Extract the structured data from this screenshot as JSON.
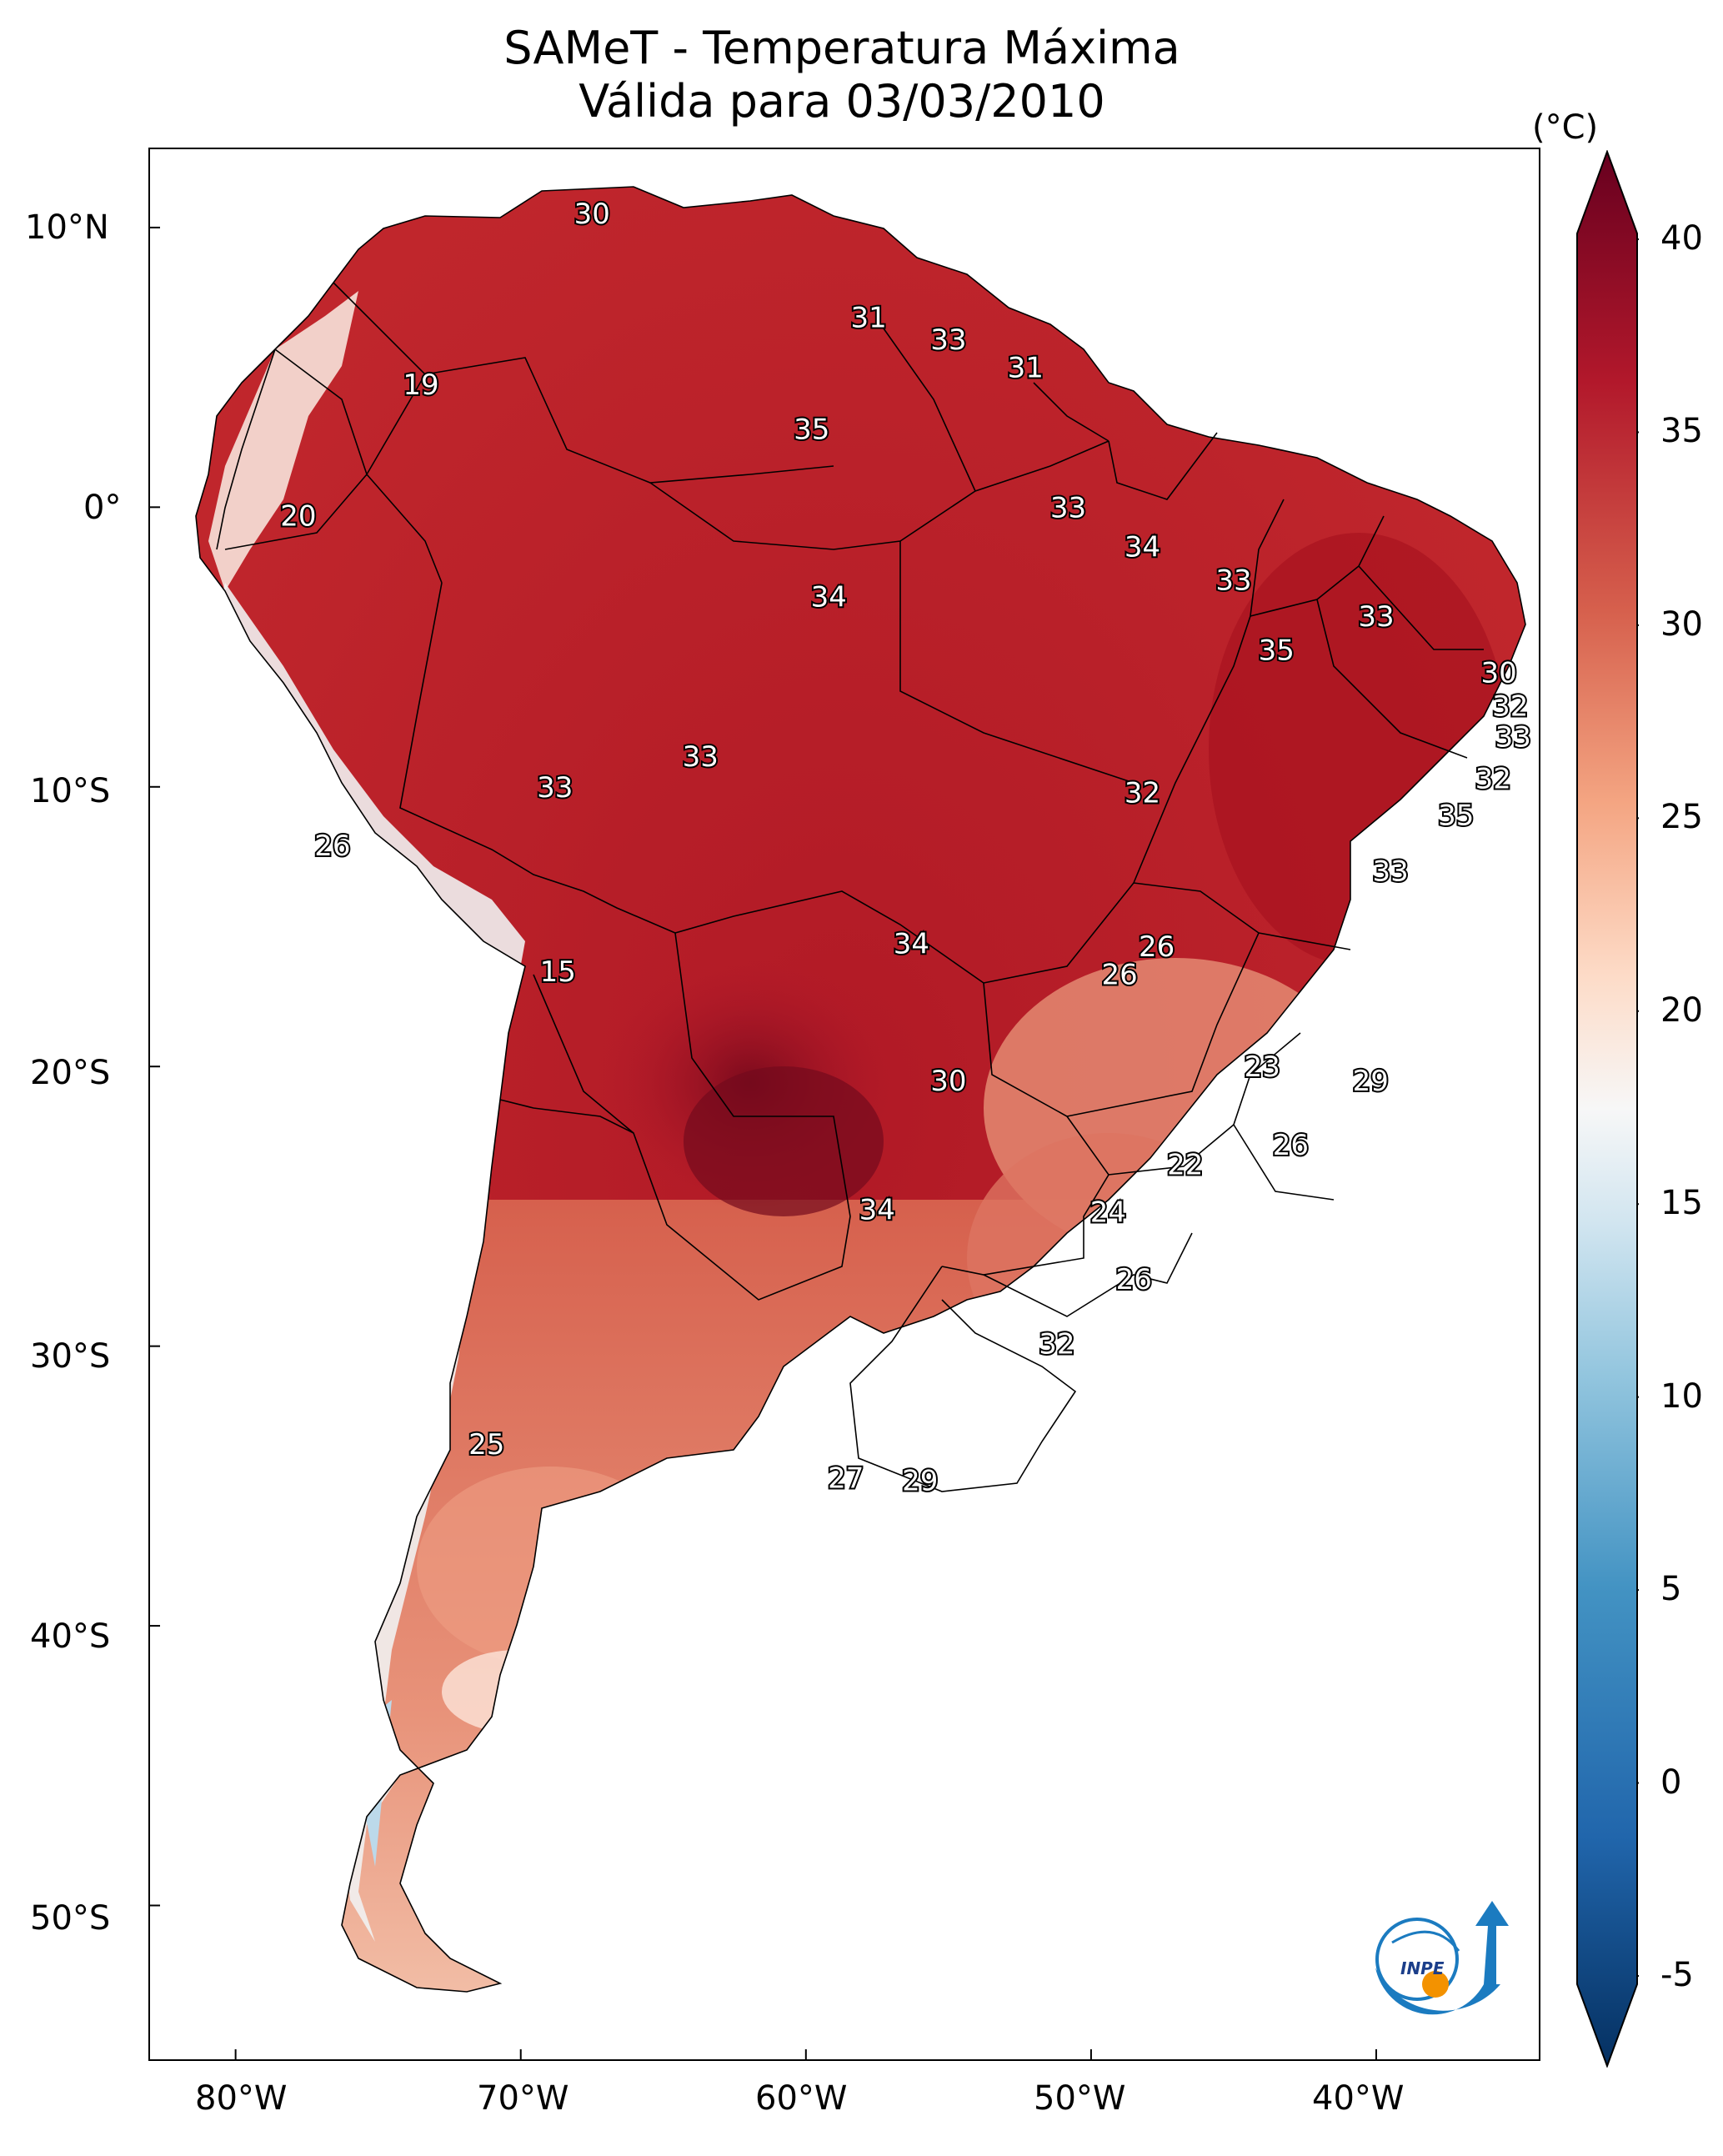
{
  "title_line1": "SAMeT - Temperatura Máxima",
  "title_line2": "Válida para 03/03/2010",
  "colorbar": {
    "unit": "(°C)",
    "ticks": [
      "40",
      "35",
      "30",
      "25",
      "20",
      "15",
      "10",
      "5",
      "0",
      "-5"
    ],
    "range": [
      -5,
      40
    ],
    "colormap": "RdBu_r",
    "colors": [
      "#053061",
      "#2166ac",
      "#4393c3",
      "#92c5de",
      "#d1e5f0",
      "#f7f7f7",
      "#fddbc7",
      "#f4a582",
      "#d6604d",
      "#b2182b",
      "#67001f"
    ]
  },
  "axes": {
    "lon_labels": [
      "80°W",
      "70°W",
      "60°W",
      "50°W",
      "40°W"
    ],
    "lat_labels": [
      "10°N",
      "0°",
      "10°S",
      "20°S",
      "30°S",
      "40°S",
      "50°S"
    ]
  },
  "isotherm_labels": [
    {
      "text": "30",
      "lon": -67.5,
      "lat": 10.5
    },
    {
      "text": "31",
      "lon": -57.8,
      "lat": 6.8
    },
    {
      "text": "33",
      "lon": -55.0,
      "lat": 6.0
    },
    {
      "text": "31",
      "lon": -52.3,
      "lat": 5.0
    },
    {
      "text": "19",
      "lon": -73.5,
      "lat": 4.4
    },
    {
      "text": "35",
      "lon": -59.8,
      "lat": 2.8
    },
    {
      "text": "20",
      "lon": -77.8,
      "lat": -0.3
    },
    {
      "text": "33",
      "lon": -50.8,
      "lat": 0.0
    },
    {
      "text": "34",
      "lon": -48.2,
      "lat": -1.4
    },
    {
      "text": "33",
      "lon": -45.0,
      "lat": -2.6
    },
    {
      "text": "34",
      "lon": -59.2,
      "lat": -3.2
    },
    {
      "text": "33",
      "lon": -40.0,
      "lat": -3.9
    },
    {
      "text": "35",
      "lon": -43.5,
      "lat": -5.1
    },
    {
      "text": "30",
      "lon": -35.7,
      "lat": -5.9
    },
    {
      "text": "32",
      "lon": -35.3,
      "lat": -7.1
    },
    {
      "text": "33",
      "lon": -35.2,
      "lat": -8.2
    },
    {
      "text": "33",
      "lon": -63.7,
      "lat": -8.9
    },
    {
      "text": "33",
      "lon": -68.8,
      "lat": -10.0
    },
    {
      "text": "32",
      "lon": -48.2,
      "lat": -10.2
    },
    {
      "text": "32",
      "lon": -35.9,
      "lat": -9.7
    },
    {
      "text": "35",
      "lon": -37.2,
      "lat": -11.0
    },
    {
      "text": "26",
      "lon": -76.6,
      "lat": -12.1
    },
    {
      "text": "33",
      "lon": -39.5,
      "lat": -13.0
    },
    {
      "text": "34",
      "lon": -56.3,
      "lat": -15.6
    },
    {
      "text": "26",
      "lon": -47.7,
      "lat": -15.7
    },
    {
      "text": "26",
      "lon": -49.0,
      "lat": -16.7
    },
    {
      "text": "15",
      "lon": -68.7,
      "lat": -16.6
    },
    {
      "text": "23",
      "lon": -44.0,
      "lat": -20.0
    },
    {
      "text": "29",
      "lon": -40.2,
      "lat": -20.5
    },
    {
      "text": "30",
      "lon": -55.0,
      "lat": -20.5
    },
    {
      "text": "26",
      "lon": -43.0,
      "lat": -22.8
    },
    {
      "text": "22",
      "lon": -46.7,
      "lat": -23.5
    },
    {
      "text": "34",
      "lon": -57.5,
      "lat": -25.1
    },
    {
      "text": "24",
      "lon": -49.4,
      "lat": -25.2
    },
    {
      "text": "26",
      "lon": -48.5,
      "lat": -27.6
    },
    {
      "text": "32",
      "lon": -51.2,
      "lat": -29.9
    },
    {
      "text": "25",
      "lon": -71.2,
      "lat": -33.5
    },
    {
      "text": "27",
      "lon": -58.6,
      "lat": -34.7
    },
    {
      "text": "29",
      "lon": -56.0,
      "lat": -34.8
    }
  ]
}
